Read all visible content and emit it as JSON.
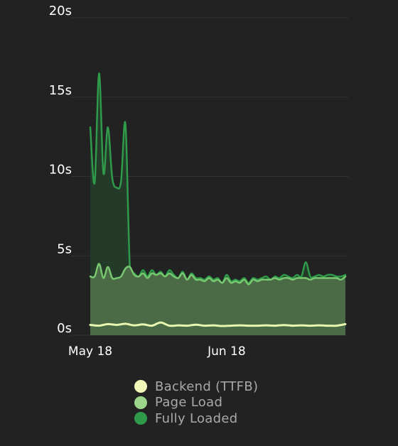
{
  "chart_data": {
    "type": "area",
    "title": "",
    "xlabel": "",
    "ylabel": "",
    "ylim": [
      0,
      20
    ],
    "yticks": [
      {
        "value": 0,
        "label": "0s"
      },
      {
        "value": 5,
        "label": "5s"
      },
      {
        "value": 10,
        "label": "10s"
      },
      {
        "value": 15,
        "label": "15s"
      },
      {
        "value": 20,
        "label": "20s"
      }
    ],
    "xrange": [
      "2020-05-18",
      "2020-07-15"
    ],
    "xticks": [
      {
        "value": "2020-05-18",
        "label": "May 18"
      },
      {
        "value": "2020-06-18",
        "label": "Jun 18"
      }
    ],
    "grid": true,
    "legend_position": "bottom",
    "background": "#222222",
    "series": [
      {
        "name": "Fully Loaded",
        "color": "#2e9a4a",
        "fill": "#243b2a",
        "x": [
          "2020-05-18",
          "2020-05-19",
          "2020-05-20",
          "2020-05-21",
          "2020-05-22",
          "2020-05-23",
          "2020-05-24",
          "2020-05-25",
          "2020-05-26",
          "2020-05-27",
          "2020-05-28",
          "2020-05-29",
          "2020-05-30",
          "2020-05-31",
          "2020-06-01",
          "2020-06-02",
          "2020-06-03",
          "2020-06-04",
          "2020-06-05",
          "2020-06-06",
          "2020-06-07",
          "2020-06-08",
          "2020-06-09",
          "2020-06-10",
          "2020-06-11",
          "2020-06-12",
          "2020-06-13",
          "2020-06-14",
          "2020-06-15",
          "2020-06-16",
          "2020-06-17",
          "2020-06-18",
          "2020-06-19",
          "2020-06-20",
          "2020-06-21",
          "2020-06-22",
          "2020-06-23",
          "2020-06-24",
          "2020-06-25",
          "2020-06-26",
          "2020-06-27",
          "2020-06-28",
          "2020-06-29",
          "2020-06-30",
          "2020-07-01",
          "2020-07-02",
          "2020-07-03",
          "2020-07-04",
          "2020-07-05",
          "2020-07-06",
          "2020-07-07",
          "2020-07-08",
          "2020-07-09",
          "2020-07-10",
          "2020-07-11",
          "2020-07-12",
          "2020-07-13",
          "2020-07-14",
          "2020-07-15"
        ],
        "values": [
          13.1,
          9.6,
          16.5,
          10.2,
          13.1,
          9.9,
          9.3,
          9.7,
          13.3,
          4.3,
          3.9,
          3.7,
          4.1,
          3.7,
          4.1,
          3.8,
          4.0,
          3.7,
          4.1,
          3.8,
          3.6,
          4.0,
          3.5,
          3.9,
          3.6,
          3.6,
          3.5,
          3.7,
          3.5,
          3.6,
          3.3,
          3.8,
          3.4,
          3.5,
          3.4,
          3.6,
          3.3,
          3.6,
          3.5,
          3.6,
          3.7,
          3.5,
          3.7,
          3.6,
          3.8,
          3.7,
          3.6,
          3.8,
          3.7,
          4.6,
          3.7,
          3.7,
          3.8,
          3.7,
          3.8,
          3.8,
          3.7,
          3.7,
          3.8
        ]
      },
      {
        "name": "Page Load",
        "color": "#78c870",
        "fill": "#4b6a46",
        "x": [
          "2020-05-18",
          "2020-05-19",
          "2020-05-20",
          "2020-05-21",
          "2020-05-22",
          "2020-05-23",
          "2020-05-24",
          "2020-05-25",
          "2020-05-26",
          "2020-05-27",
          "2020-05-28",
          "2020-05-29",
          "2020-05-30",
          "2020-05-31",
          "2020-06-01",
          "2020-06-02",
          "2020-06-03",
          "2020-06-04",
          "2020-06-05",
          "2020-06-06",
          "2020-06-07",
          "2020-06-08",
          "2020-06-09",
          "2020-06-10",
          "2020-06-11",
          "2020-06-12",
          "2020-06-13",
          "2020-06-14",
          "2020-06-15",
          "2020-06-16",
          "2020-06-17",
          "2020-06-18",
          "2020-06-19",
          "2020-06-20",
          "2020-06-21",
          "2020-06-22",
          "2020-06-23",
          "2020-06-24",
          "2020-06-25",
          "2020-06-26",
          "2020-06-27",
          "2020-06-28",
          "2020-06-29",
          "2020-06-30",
          "2020-07-01",
          "2020-07-02",
          "2020-07-03",
          "2020-07-04",
          "2020-07-05",
          "2020-07-06",
          "2020-07-07",
          "2020-07-08",
          "2020-07-09",
          "2020-07-10",
          "2020-07-11",
          "2020-07-12",
          "2020-07-13",
          "2020-07-14",
          "2020-07-15"
        ],
        "values": [
          3.7,
          3.7,
          4.5,
          3.6,
          4.3,
          3.6,
          3.6,
          3.7,
          4.2,
          4.3,
          3.8,
          3.7,
          3.9,
          3.6,
          3.9,
          3.8,
          3.9,
          3.7,
          3.9,
          3.7,
          3.6,
          3.9,
          3.5,
          3.8,
          3.5,
          3.5,
          3.4,
          3.6,
          3.4,
          3.5,
          3.3,
          3.6,
          3.3,
          3.4,
          3.3,
          3.5,
          3.2,
          3.5,
          3.4,
          3.5,
          3.5,
          3.5,
          3.6,
          3.5,
          3.6,
          3.6,
          3.5,
          3.6,
          3.6,
          3.6,
          3.5,
          3.6,
          3.6,
          3.6,
          3.6,
          3.6,
          3.6,
          3.5,
          3.7
        ]
      },
      {
        "name": "Backend (TTFB)",
        "color": "#e8f7b0",
        "fill": "#4b6a46",
        "x": [
          "2020-05-18",
          "2020-05-20",
          "2020-05-22",
          "2020-05-24",
          "2020-05-26",
          "2020-05-28",
          "2020-05-30",
          "2020-06-01",
          "2020-06-03",
          "2020-06-05",
          "2020-06-07",
          "2020-06-09",
          "2020-06-11",
          "2020-06-13",
          "2020-06-15",
          "2020-06-17",
          "2020-06-19",
          "2020-06-21",
          "2020-06-23",
          "2020-06-25",
          "2020-06-27",
          "2020-06-29",
          "2020-07-01",
          "2020-07-03",
          "2020-07-05",
          "2020-07-07",
          "2020-07-09",
          "2020-07-11",
          "2020-07-13",
          "2020-07-15"
        ],
        "values": [
          0.65,
          0.6,
          0.7,
          0.65,
          0.72,
          0.62,
          0.68,
          0.6,
          0.8,
          0.6,
          0.62,
          0.6,
          0.66,
          0.6,
          0.62,
          0.58,
          0.6,
          0.62,
          0.6,
          0.6,
          0.62,
          0.6,
          0.64,
          0.6,
          0.62,
          0.6,
          0.62,
          0.6,
          0.6,
          0.7
        ]
      }
    ],
    "legend": [
      {
        "label": "Backend (TTFB)",
        "color": "#f1f8b9"
      },
      {
        "label": "Page Load",
        "color": "#9cd68a"
      },
      {
        "label": "Fully Loaded",
        "color": "#2e9a4a"
      }
    ],
    "colors": {
      "grid": "#333333",
      "tick_text": "#ffffff",
      "legend_text": "#a9a9a9"
    }
  }
}
